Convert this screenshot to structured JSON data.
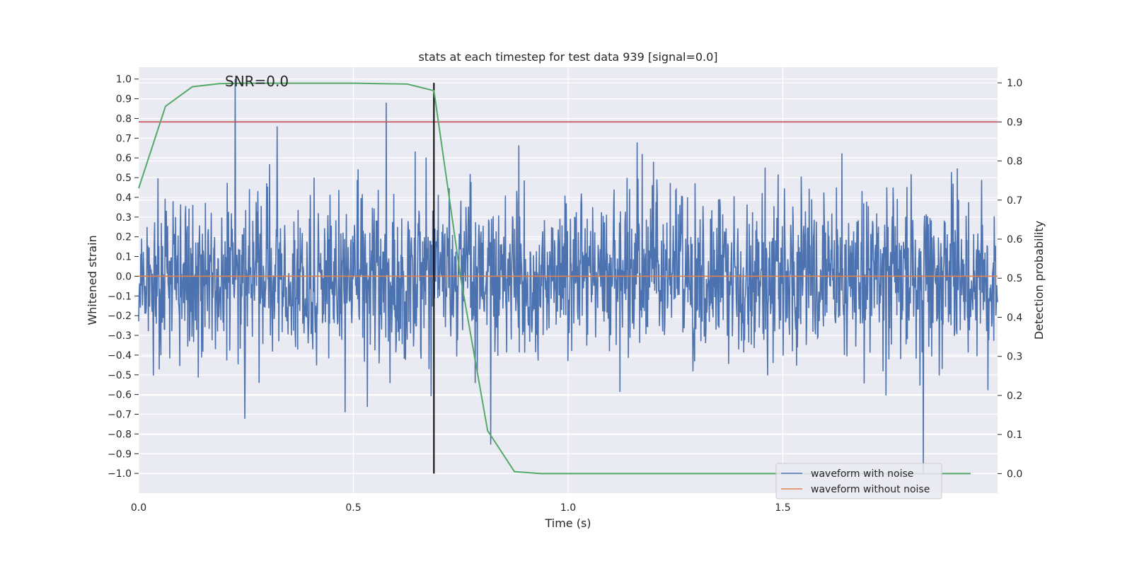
{
  "chart_data": {
    "type": "line",
    "title": "stats at each timestep for test data 939 [signal=0.0]",
    "xlabel": "Time (s)",
    "ylabel_left": "Whitened strain",
    "ylabel_right": "Detection probability",
    "annotation": "SNR=0.0",
    "xlim": [
      0.0,
      2.0
    ],
    "ylim_left": [
      -1.1,
      1.06
    ],
    "ylim_right": [
      -0.05,
      1.04
    ],
    "x_ticks": [
      "0.0",
      "0.5",
      "1.0",
      "1.5"
    ],
    "x_tick_values": [
      0.0,
      0.5,
      1.0,
      1.5
    ],
    "y_ticks_left": [
      "−1.0",
      "−0.9",
      "−0.8",
      "−0.7",
      "−0.6",
      "−0.5",
      "−0.4",
      "−0.3",
      "−0.2",
      "−0.1",
      "0.0",
      "0.1",
      "0.2",
      "0.3",
      "0.4",
      "0.5",
      "0.6",
      "0.7",
      "0.8",
      "0.9",
      "1.0"
    ],
    "y_tick_values_left": [
      -1.0,
      -0.9,
      -0.8,
      -0.7,
      -0.6,
      -0.5,
      -0.4,
      -0.3,
      -0.2,
      -0.1,
      0.0,
      0.1,
      0.2,
      0.3,
      0.4,
      0.5,
      0.6,
      0.7,
      0.8,
      0.9,
      1.0
    ],
    "y_ticks_right": [
      "0.0",
      "0.1",
      "0.2",
      "0.3",
      "0.4",
      "0.5",
      "0.6",
      "0.7",
      "0.8",
      "0.9",
      "1.0"
    ],
    "y_tick_values_right": [
      0.0,
      0.1,
      0.2,
      0.3,
      0.4,
      0.5,
      0.6,
      0.7,
      0.8,
      0.9,
      1.0
    ],
    "grid": true,
    "legend_position": "lower right",
    "series": [
      {
        "name": "waveform with noise",
        "axis": "left",
        "color": "#4c72b0",
        "kind": "noise",
        "x_range": [
          0.0,
          2.0
        ],
        "y_range_typical": [
          -0.45,
          0.45
        ],
        "y_extremes": [
          -1.0,
          1.0
        ],
        "n_points": 2048
      },
      {
        "name": "waveform without noise",
        "axis": "left",
        "color": "#dd8452",
        "x": [
          0.0,
          2.0
        ],
        "y": [
          0.0,
          0.0
        ]
      },
      {
        "axis": "right",
        "color": "#55a868",
        "x": [
          0.0,
          0.0625,
          0.125,
          0.1875,
          0.25,
          0.3125,
          0.375,
          0.4375,
          0.5,
          0.5625,
          0.625,
          0.6875,
          0.75,
          0.8125,
          0.875,
          0.9375,
          1.0,
          1.0625,
          1.125,
          1.1875,
          1.25,
          1.3125,
          1.375,
          1.4375,
          1.5,
          1.5625,
          1.625,
          1.6875,
          1.75,
          1.8125,
          1.875,
          1.9375
        ],
        "y": [
          0.73,
          0.94,
          0.99,
          0.998,
          0.999,
          0.999,
          0.999,
          0.999,
          0.999,
          0.998,
          0.997,
          0.98,
          0.5,
          0.11,
          0.005,
          0.0,
          0.0,
          0.0,
          0.0,
          0.0,
          0.0,
          0.0,
          0.0,
          0.0,
          0.0,
          0.0,
          0.0,
          0.0,
          0.0,
          0.0,
          0.0,
          0.0
        ]
      }
    ],
    "threshold_line": {
      "axis": "right",
      "value": 0.9,
      "color": "#c44e52"
    },
    "marker_line": {
      "x": 0.6875,
      "y_range_right": [
        0.0,
        1.0
      ],
      "color": "#000000"
    },
    "colors": {
      "plot_background": "#eaeaf2",
      "grid": "#ffffff",
      "noise": "#4c72b0",
      "clean": "#dd8452",
      "probability": "#55a868",
      "threshold": "#c44e52",
      "marker": "#000000"
    }
  }
}
